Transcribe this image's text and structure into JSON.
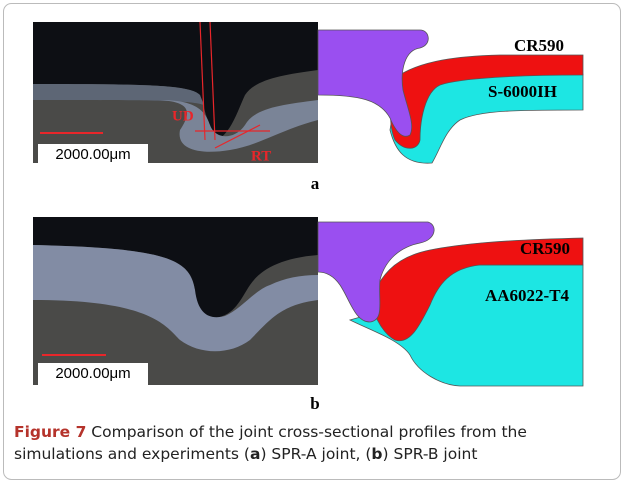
{
  "panels": [
    {
      "letter": "a",
      "labels": [
        "CR590",
        "S-6000IH"
      ],
      "annotations": [
        "UD",
        "RT"
      ],
      "scale_bar": "2000.00μm"
    },
    {
      "letter": "b",
      "labels": [
        "CR590",
        "AA6022-T4"
      ],
      "scale_bar": "2000.00μm"
    }
  ],
  "caption": {
    "label": "Figure 7",
    "parts": [
      " Comparison of the joint cross-sectional profiles from the simulations and experiments (",
      "a",
      ") SPR-A joint, (",
      "b",
      ") SPR-B joint"
    ]
  }
}
